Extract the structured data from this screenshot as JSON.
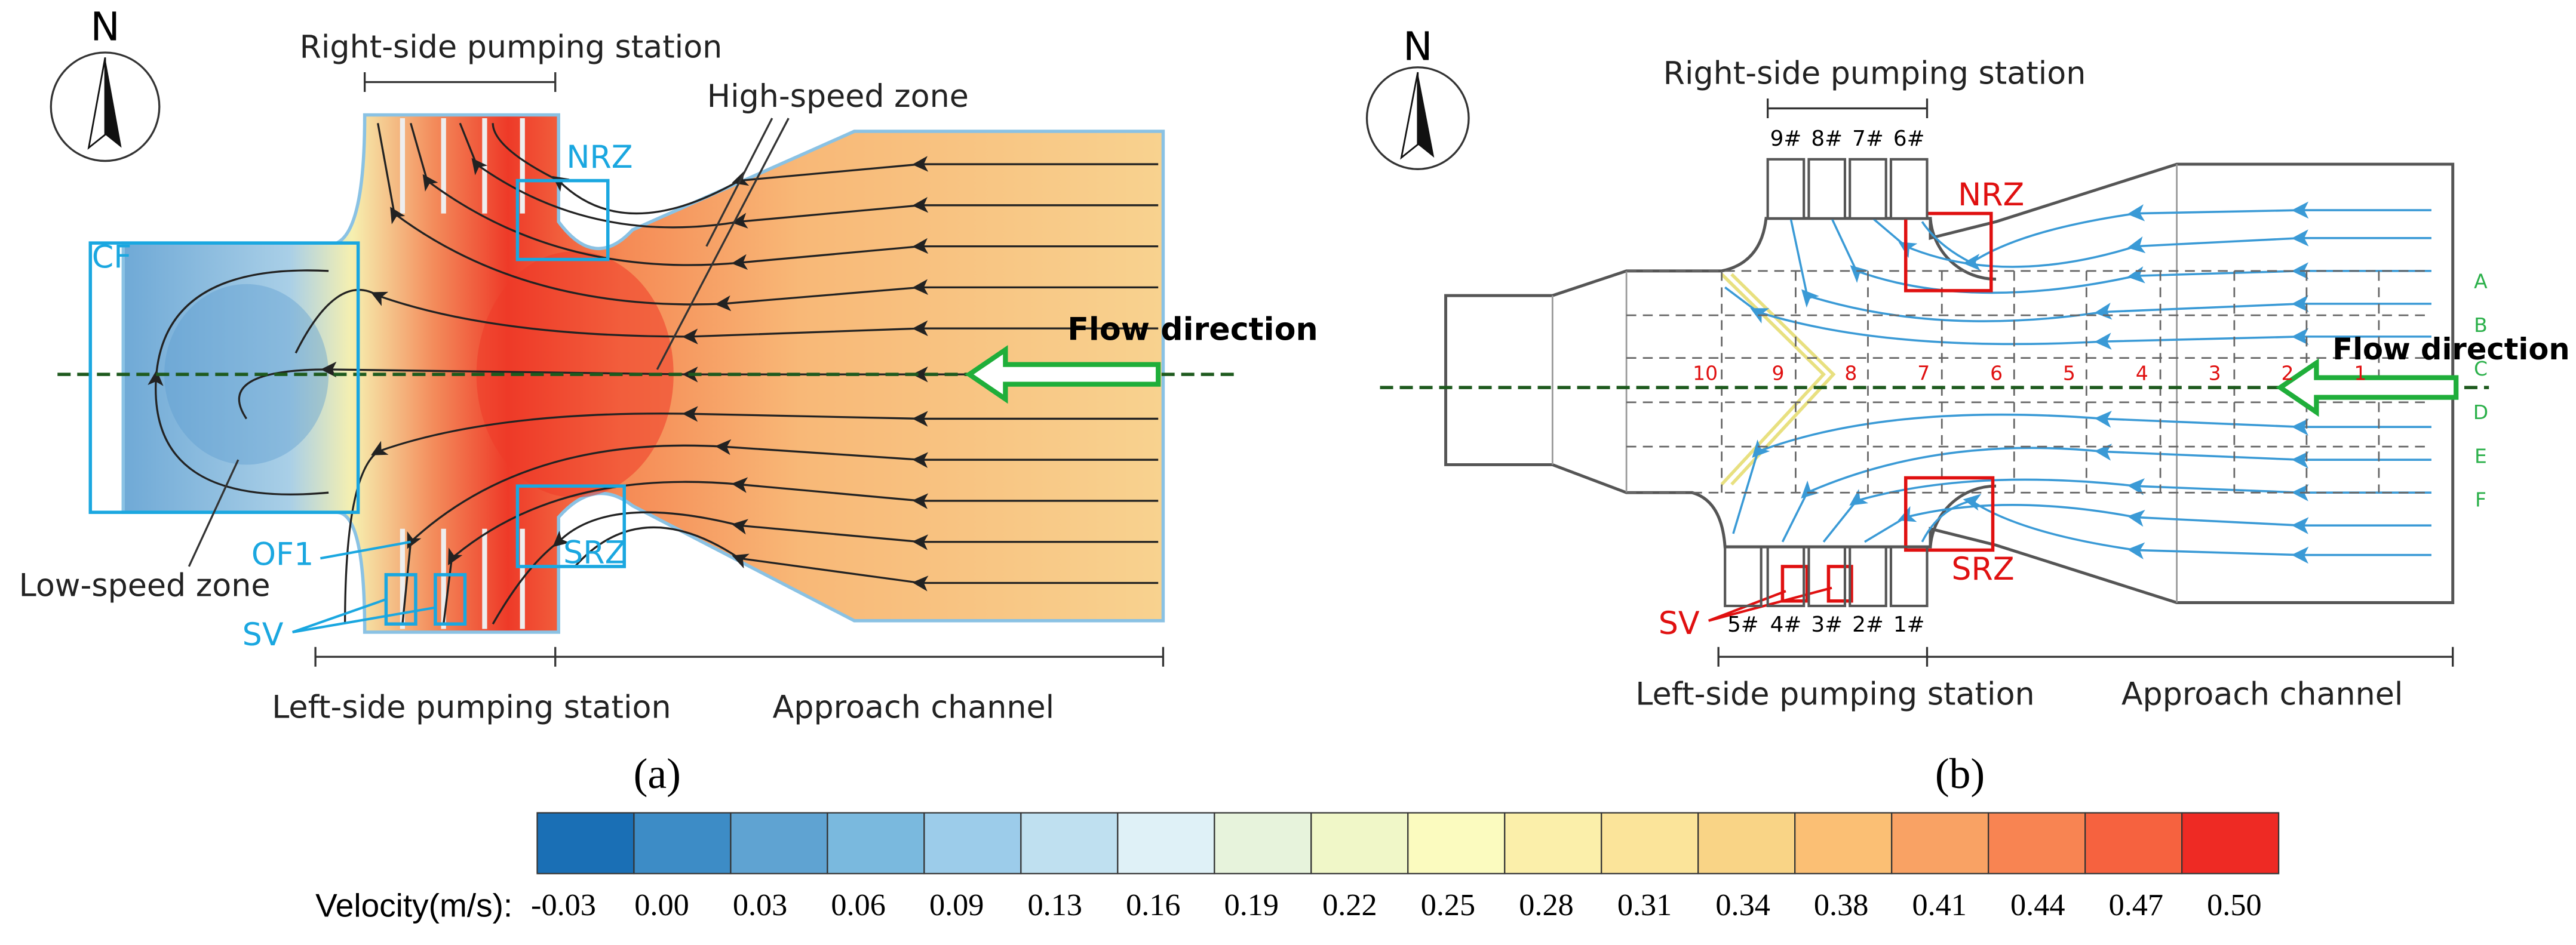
{
  "panel_a": {
    "compass": "N",
    "right_station": "Right-side pumping station",
    "high_speed": "High-speed zone",
    "nrz": "NRZ",
    "cf": "CF",
    "flow": "Flow direction",
    "low_speed": "Low-speed zone",
    "of1": "OF1",
    "srz": "SRZ",
    "sv": "SV",
    "left_station": "Left-side pumping station",
    "approach": "Approach channel",
    "caption": "(a)"
  },
  "panel_b": {
    "compass": "N",
    "right_station": "Right-side pumping station",
    "pumps_top": [
      "9#",
      "8#",
      "7#",
      "6#"
    ],
    "pumps_bottom": [
      "5#",
      "4#",
      "3#",
      "2#",
      "1#"
    ],
    "nrz": "NRZ",
    "srz": "SRZ",
    "sv": "SV",
    "flow": "Flow direction",
    "sections": [
      "10",
      "9",
      "8",
      "7",
      "6",
      "5",
      "4",
      "3",
      "2",
      "1"
    ],
    "rows": [
      "A",
      "B",
      "C",
      "D",
      "E",
      "F"
    ],
    "left_station": "Left-side pumping station",
    "approach": "Approach channel",
    "caption": "(b)"
  },
  "colorbar": {
    "title": "Velocity(m/s):",
    "labels": [
      "-0.03",
      "0.00",
      "0.03",
      "0.06",
      "0.09",
      "0.13",
      "0.16",
      "0.19",
      "0.22",
      "0.25",
      "0.28",
      "0.31",
      "0.34",
      "0.38",
      "0.41",
      "0.44",
      "0.47",
      "0.50"
    ],
    "colors": [
      "#1a6fb5",
      "#3d8cc6",
      "#5fa3d2",
      "#7ab9de",
      "#9cccea",
      "#bfe0f0",
      "#dff1f7",
      "#e7f3dc",
      "#f0f7c8",
      "#fbfbbf",
      "#fbefaa",
      "#fbe49a",
      "#f9d486",
      "#fbbf74",
      "#f9a264",
      "#f88452",
      "#f6623f",
      "#ee2a24"
    ]
  }
}
